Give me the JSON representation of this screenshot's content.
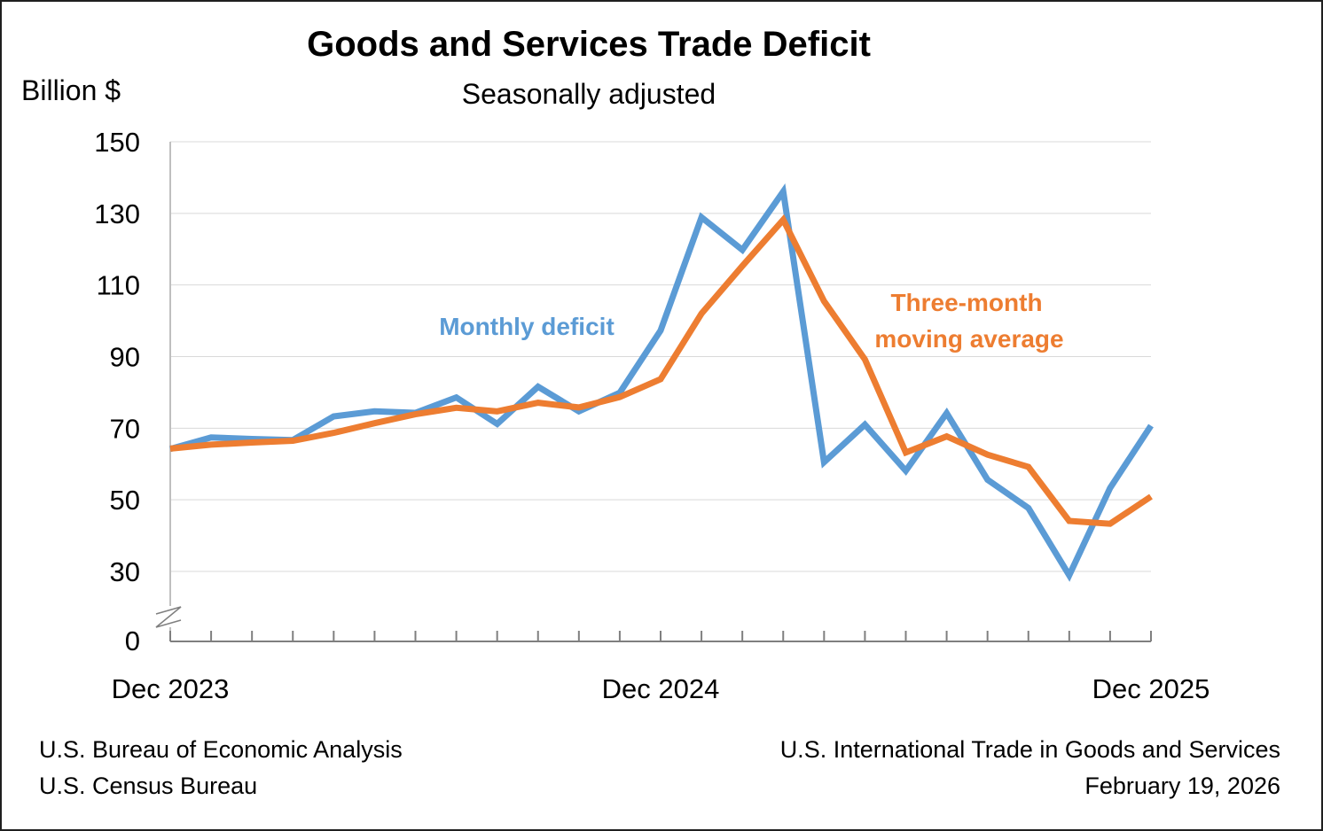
{
  "chart_data": {
    "type": "line",
    "title": "Goods and Services Trade Deficit",
    "subtitle": "Seasonally adjusted",
    "ylabel": "Billion $",
    "xlabel": "",
    "x": [
      "Dec 2023",
      "Jan 2024",
      "Feb 2024",
      "Mar 2024",
      "Apr 2024",
      "May 2024",
      "Jun 2024",
      "Jul 2024",
      "Aug 2024",
      "Sep 2024",
      "Oct 2024",
      "Nov 2024",
      "Dec 2024",
      "Jan 2025",
      "Feb 2025",
      "Mar 2025",
      "Apr 2025",
      "May 2025",
      "Jun 2025",
      "Jul 2025",
      "Aug 2025",
      "Sep 2025",
      "Oct 2025",
      "Nov 2025",
      "Dec 2025"
    ],
    "x_tick_labels": [
      "Dec 2023",
      "Dec 2024",
      "Dec 2025"
    ],
    "y_ticks": [
      0,
      30,
      50,
      70,
      90,
      110,
      130,
      150
    ],
    "y_tick_labels": [
      "0",
      "30",
      "50",
      "70",
      "90",
      "110",
      "130",
      "150"
    ],
    "ylim": [
      0,
      150
    ],
    "y_axis_break": true,
    "grid": "horizontal",
    "legend": "none (series labeled inline)",
    "series": [
      {
        "name": "Monthly deficit",
        "color": "#5b9bd5",
        "values": [
          64.2,
          67.4,
          67.0,
          66.7,
          73.3,
          74.7,
          74.3,
          78.6,
          71.2,
          81.6,
          74.7,
          79.9,
          97.3,
          128.9,
          119.8,
          136.1,
          60.5,
          71.0,
          58.1,
          74.2,
          55.6,
          47.7,
          28.9,
          53.3,
          70.7
        ]
      },
      {
        "name": "Three-month moving average",
        "label_lines": [
          "Three-month",
          "moving average"
        ],
        "color": "#ed7d31",
        "values": [
          64.3,
          65.4,
          66.0,
          66.5,
          68.7,
          71.4,
          73.9,
          75.7,
          74.7,
          77.1,
          75.8,
          78.7,
          83.7,
          102.0,
          115.3,
          128.2,
          105.5,
          89.2,
          63.2,
          67.7,
          62.6,
          59.2,
          44.1,
          43.3,
          50.9
        ]
      }
    ]
  },
  "footer": {
    "left_line1": "U.S. Bureau of Economic Analysis",
    "left_line2": "U.S. Census Bureau",
    "right_line1": "U.S. International Trade in Goods and Services",
    "right_line2": "February 19, 2026"
  }
}
